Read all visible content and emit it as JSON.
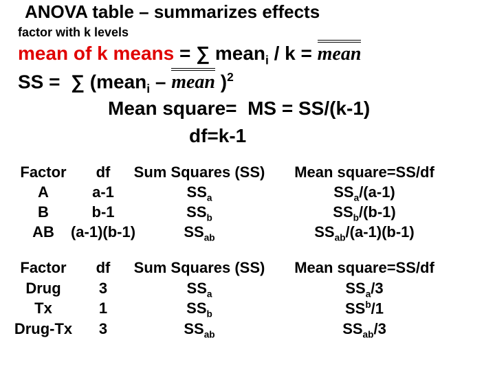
{
  "title": "ANOVA table – summarizes effects",
  "subtitle": "factor with k levels",
  "formulas": {
    "grand_mean": {
      "label": "mean of k means",
      "eq": " = ∑ mean",
      "sub": "i",
      "rest": " / k = ",
      "symbol": "mean"
    },
    "ss": {
      "eq": "SS =  ∑ (mean",
      "sub": "i",
      "rest": " – ",
      "symbol": "mean",
      "close": " )",
      "sup": "2"
    },
    "ms": "Mean square=  MS = SS/(k-1)",
    "df": "df=k-1"
  },
  "tables": [
    {
      "header": [
        "Factor",
        "df",
        "Sum Squares (SS)",
        "Mean square=SS/df"
      ],
      "rows": [
        [
          {
            "base": "A"
          },
          {
            "base": "a-1"
          },
          {
            "base": "SS",
            "sub": "a"
          },
          {
            "base": "SS",
            "sub": "a",
            "rest": "/(a-1)"
          }
        ],
        [
          {
            "base": "B"
          },
          {
            "base": "b-1"
          },
          {
            "base": "SS",
            "sub": "b"
          },
          {
            "base": "SS",
            "sub": "b",
            "rest": "/(b-1)"
          }
        ],
        [
          {
            "base": "AB"
          },
          {
            "base": "(a-1)(b-1)"
          },
          {
            "base": "SS",
            "sub": "ab"
          },
          {
            "base": "SS",
            "sub": "ab",
            "rest": "/(a-1)(b-1)"
          }
        ]
      ]
    },
    {
      "header": [
        "Factor",
        "df",
        "Sum Squares (SS)",
        "Mean square=SS/df"
      ],
      "rows": [
        [
          {
            "base": "Drug"
          },
          {
            "base": "3"
          },
          {
            "base": "SS",
            "sub": "a"
          },
          {
            "base": "SS",
            "sub": "a",
            "rest": "/3"
          }
        ],
        [
          {
            "base": "Tx"
          },
          {
            "base": "1"
          },
          {
            "base": "SS",
            "sub": "b"
          },
          {
            "base": "SS",
            "sup": "b",
            "rest": "/1"
          }
        ],
        [
          {
            "base": "Drug-Tx"
          },
          {
            "base": "3"
          },
          {
            "base": "SS",
            "sub": "ab"
          },
          {
            "base": "SS",
            "sub": "ab",
            "rest": "/3"
          }
        ]
      ]
    }
  ]
}
